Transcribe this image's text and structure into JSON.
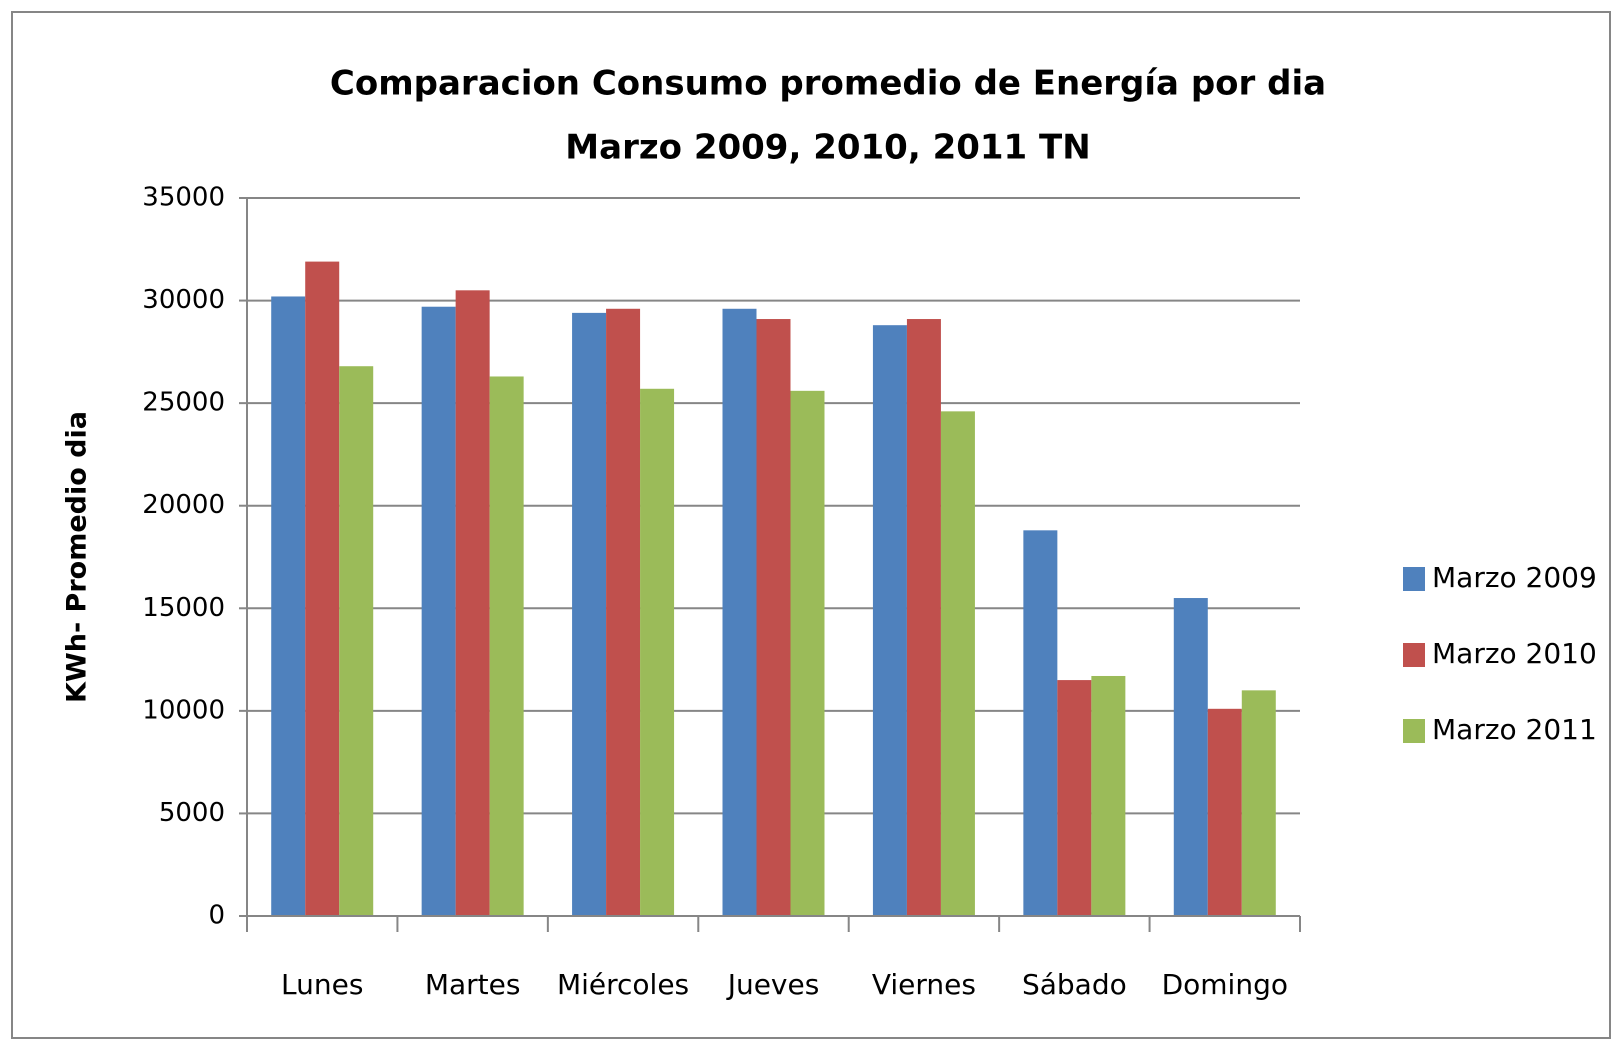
{
  "chart_data": {
    "type": "bar",
    "title": "Comparacion Consumo promedio de Energía por dia",
    "subtitle": "Marzo 2009, 2010, 2011 TN",
    "y_label": "KWh-  Promedio dia",
    "categories": [
      "Lunes",
      "Martes",
      "Miércoles",
      "Jueves",
      "Viernes",
      "Sábado",
      "Domingo"
    ],
    "series": [
      {
        "name": "Marzo 2009",
        "color": "#4f81bd",
        "values": [
          30200,
          29700,
          29400,
          29600,
          28800,
          18800,
          15500
        ]
      },
      {
        "name": "Marzo 2010",
        "color": "#c0504d",
        "values": [
          31900,
          30500,
          29600,
          29100,
          29100,
          11500,
          10100
        ]
      },
      {
        "name": "Marzo 2011",
        "color": "#9bbb59",
        "values": [
          26800,
          26300,
          25700,
          25600,
          24600,
          11700,
          11000
        ]
      }
    ],
    "ylim": [
      0,
      35000
    ],
    "yticks": [
      0,
      5000,
      10000,
      15000,
      20000,
      25000,
      30000,
      35000
    ],
    "grid": true,
    "legend": "right"
  }
}
